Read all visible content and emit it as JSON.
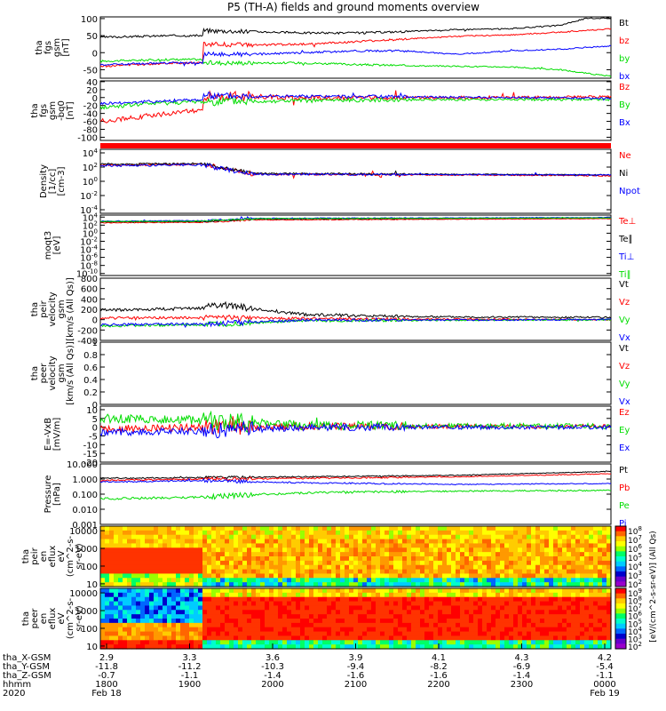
{
  "title": "P5 (TH-A) fields and ground moments overview",
  "colors": {
    "black": "#000000",
    "red": "#ff0000",
    "green": "#00dd00",
    "blue": "#0000ff"
  },
  "chart_data": [
    {
      "type": "line",
      "ylabel": [
        "tha",
        "fgs",
        "gsm",
        "[nT]"
      ],
      "yticks": [
        100,
        50,
        0,
        -50
      ],
      "ylim": [
        -75,
        105
      ],
      "legend": [
        {
          "label": "Bt",
          "color": "black"
        },
        {
          "label": "bz",
          "color": "red"
        },
        {
          "label": "by",
          "color": "green"
        },
        {
          "label": "bx",
          "color": "blue"
        }
      ],
      "series": [
        {
          "name": "Bt",
          "color": "black",
          "x": [
            0,
            0.14,
            0.2,
            0.2,
            0.3,
            0.4,
            0.5,
            0.6,
            0.7,
            0.8,
            0.9,
            0.95,
            1
          ],
          "values": [
            45,
            50,
            50,
            65,
            62,
            58,
            58,
            62,
            68,
            70,
            80,
            100,
            102
          ],
          "noise": 3
        },
        {
          "name": "bz",
          "color": "red",
          "x": [
            0,
            0.14,
            0.2,
            0.2,
            0.3,
            0.4,
            0.5,
            0.6,
            0.7,
            0.8,
            0.9,
            1
          ],
          "values": [
            -40,
            -30,
            -30,
            25,
            22,
            25,
            32,
            40,
            48,
            52,
            60,
            70
          ],
          "noise": 3
        },
        {
          "name": "by",
          "color": "green",
          "x": [
            0,
            0.14,
            0.2,
            0.2,
            0.3,
            0.4,
            0.5,
            0.6,
            0.7,
            0.8,
            0.9,
            1
          ],
          "values": [
            -25,
            -20,
            -20,
            -30,
            -30,
            -30,
            -35,
            -38,
            -40,
            -42,
            -50,
            -70
          ],
          "noise": 3
        },
        {
          "name": "bx",
          "color": "blue",
          "x": [
            0,
            0.14,
            0.2,
            0.2,
            0.3,
            0.4,
            0.5,
            0.6,
            0.7,
            0.8,
            0.9,
            1
          ],
          "values": [
            -35,
            -30,
            -30,
            -5,
            -5,
            0,
            5,
            5,
            -5,
            5,
            10,
            20
          ],
          "noise": 3
        }
      ]
    },
    {
      "type": "line",
      "ylabel": [
        "tha",
        "fgs",
        "gsm",
        "-bq0",
        "[nT]"
      ],
      "yticks": [
        40,
        20,
        0,
        -20,
        -40,
        -60,
        -80,
        -100
      ],
      "ylim": [
        -108,
        42
      ],
      "legend": [
        {
          "label": "Bz",
          "color": "red"
        },
        {
          "label": "By",
          "color": "green"
        },
        {
          "label": "Bx",
          "color": "blue"
        }
      ],
      "series": [
        {
          "name": "Bz",
          "color": "red",
          "x": [
            0,
            0.1,
            0.2,
            0.2,
            0.4,
            0.6,
            0.8,
            1
          ],
          "values": [
            -60,
            -45,
            -30,
            5,
            0,
            0,
            0,
            2
          ],
          "noise": 6
        },
        {
          "name": "By",
          "color": "green",
          "x": [
            0,
            0.1,
            0.2,
            0.2,
            0.4,
            0.6,
            0.8,
            1
          ],
          "values": [
            -25,
            -15,
            -10,
            -10,
            -8,
            -5,
            -5,
            -5
          ],
          "noise": 5
        },
        {
          "name": "Bx",
          "color": "blue",
          "x": [
            0,
            0.1,
            0.2,
            0.2,
            0.4,
            0.6,
            0.8,
            1
          ],
          "values": [
            -15,
            -10,
            -5,
            5,
            3,
            2,
            0,
            -2
          ],
          "noise": 4
        }
      ]
    },
    {
      "type": "line",
      "ylabel": [
        "Density",
        "[1/cc]",
        "[cm-3]"
      ],
      "yticks": [
        "10^4",
        "10^2",
        "10^0",
        "10^-2",
        "10^-4"
      ],
      "ylim": [
        -4.5,
        4.5
      ],
      "log": true,
      "legend": [
        {
          "label": "Ne",
          "color": "red"
        },
        {
          "label": "Ni",
          "color": "black"
        },
        {
          "label": "Npot",
          "color": "blue"
        }
      ],
      "series": [
        {
          "name": "Ne",
          "color": "red",
          "x": [
            0,
            0.2,
            0.3,
            1
          ],
          "values": [
            2.3,
            2.4,
            1,
            0.8
          ],
          "noise": 0.15
        },
        {
          "name": "Ni",
          "color": "black",
          "x": [
            0,
            0.2,
            0.3,
            1
          ],
          "values": [
            2.4,
            2.5,
            1.1,
            0.9
          ],
          "noise": 0.12
        },
        {
          "name": "Npot",
          "color": "blue",
          "x": [
            0,
            0.2,
            0.3,
            1
          ],
          "values": [
            2.2,
            2.3,
            1.0,
            0.9
          ],
          "noise": 0.15
        }
      ]
    },
    {
      "type": "line",
      "ylabel": [
        "moqt3",
        "[eV]"
      ],
      "yticks": [
        "10^4",
        "10^2",
        "10^0",
        "10^-2",
        "10^-4",
        "10^-6",
        "10^-8",
        "10^-10"
      ],
      "ylim": [
        -10.5,
        4.5
      ],
      "log": true,
      "legend": [
        {
          "label": "Te⊥",
          "color": "red"
        },
        {
          "label": "Te∥",
          "color": "black"
        },
        {
          "label": "Ti⊥",
          "color": "blue"
        },
        {
          "label": "Ti∥",
          "color": "green"
        }
      ],
      "series": [
        {
          "name": "Te⊥",
          "color": "red",
          "x": [
            0,
            0.2,
            0.3,
            1
          ],
          "values": [
            2.6,
            2.7,
            3.3,
            3.6
          ],
          "noise": 0.1
        },
        {
          "name": "Te∥",
          "color": "black",
          "x": [
            0,
            0.2,
            0.3,
            1
          ],
          "values": [
            2.8,
            2.9,
            3.5,
            3.8
          ],
          "noise": 0.1
        },
        {
          "name": "Ti⊥",
          "color": "blue",
          "x": [
            0,
            0.2,
            0.3,
            1
          ],
          "values": [
            3.0,
            3.1,
            3.7,
            3.9
          ],
          "noise": 0.1
        },
        {
          "name": "Ti∥",
          "color": "green",
          "x": [
            0,
            0.2,
            0.3,
            1
          ],
          "values": [
            2.9,
            3.0,
            3.6,
            3.8
          ],
          "noise": 0.1
        }
      ]
    },
    {
      "type": "line",
      "ylabel": [
        "tha",
        "peir",
        "velocity",
        "gsm",
        "[km/s (All Qs)]"
      ],
      "yticks": [
        800,
        600,
        400,
        200,
        0,
        -200,
        -400
      ],
      "ylim": [
        -400,
        800
      ],
      "legend": [
        {
          "label": "Vt",
          "color": "black"
        },
        {
          "label": "Vz",
          "color": "red"
        },
        {
          "label": "Vy",
          "color": "green"
        },
        {
          "label": "Vx",
          "color": "blue"
        }
      ],
      "series": [
        {
          "name": "Vt",
          "color": "black",
          "x": [
            0,
            0.2,
            0.22,
            0.4,
            0.6,
            1
          ],
          "values": [
            180,
            220,
            300,
            100,
            60,
            40
          ],
          "noise": 30
        },
        {
          "name": "Vz",
          "color": "red",
          "x": [
            0,
            0.2,
            0.4,
            1
          ],
          "values": [
            30,
            40,
            20,
            0
          ],
          "noise": 25
        },
        {
          "name": "Vy",
          "color": "green",
          "x": [
            0,
            0.2,
            0.4,
            1
          ],
          "values": [
            -120,
            -100,
            -20,
            0
          ],
          "noise": 25
        },
        {
          "name": "Vx",
          "color": "blue",
          "x": [
            0,
            0.2,
            0.4,
            1
          ],
          "values": [
            -100,
            -80,
            -10,
            0
          ],
          "noise": 25
        }
      ]
    },
    {
      "type": "line",
      "ylabel": [
        "tha",
        "peer",
        "velocity",
        "gsm",
        "[km/s (All Qs)]"
      ],
      "yticks": [
        1.0,
        0.8,
        0.6,
        0.4,
        0.2,
        0.0
      ],
      "ylim": [
        0,
        1
      ],
      "legend": [
        {
          "label": "Vt",
          "color": "black"
        },
        {
          "label": "Vz",
          "color": "red"
        },
        {
          "label": "Vy",
          "color": "green"
        },
        {
          "label": "Vx",
          "color": "blue"
        }
      ],
      "series": []
    },
    {
      "type": "line",
      "ylabel": [
        "E=-VxB",
        "[mV/m]"
      ],
      "yticks": [
        10,
        5,
        0,
        -5,
        -10,
        -15,
        -20
      ],
      "ylim": [
        -20,
        12
      ],
      "legend": [
        {
          "label": "Ez",
          "color": "red"
        },
        {
          "label": "Ey",
          "color": "green"
        },
        {
          "label": "Ex",
          "color": "blue"
        }
      ],
      "series": [
        {
          "name": "Ez",
          "color": "red",
          "x": [
            0,
            0.2,
            0.4,
            1
          ],
          "values": [
            -1,
            0,
            0.5,
            0.5
          ],
          "noise": 2
        },
        {
          "name": "Ey",
          "color": "green",
          "x": [
            0,
            0.2,
            0.4,
            1
          ],
          "values": [
            5,
            4,
            1,
            0.5
          ],
          "noise": 2.5
        },
        {
          "name": "Ex",
          "color": "blue",
          "x": [
            0,
            0.2,
            0.4,
            1
          ],
          "values": [
            -3,
            -2,
            0,
            0
          ],
          "noise": 2
        }
      ]
    },
    {
      "type": "line",
      "ylabel": [
        "Pressure",
        "[nPa]"
      ],
      "yticks": [
        "10.000",
        "1.000",
        "0.100",
        "0.010",
        "0.001"
      ],
      "ylim": [
        -3,
        1
      ],
      "log": true,
      "legend": [
        {
          "label": "Pt",
          "color": "black"
        },
        {
          "label": "Pb",
          "color": "red"
        },
        {
          "label": "Pe",
          "color": "green"
        },
        {
          "label": "Pi",
          "color": "blue"
        }
      ],
      "series": [
        {
          "name": "Pt",
          "color": "black",
          "x": [
            0,
            0.2,
            0.4,
            0.7,
            1
          ],
          "values": [
            0.05,
            0.1,
            0.15,
            0.25,
            0.5
          ],
          "noise": 0.04
        },
        {
          "name": "Pb",
          "color": "red",
          "x": [
            0,
            0.2,
            0.4,
            0.7,
            1
          ],
          "values": [
            -0.1,
            0.0,
            0.05,
            0.15,
            0.35
          ],
          "noise": 0.05
        },
        {
          "name": "Pe",
          "color": "green",
          "x": [
            0,
            0.2,
            0.4,
            0.7,
            1
          ],
          "values": [
            -1.3,
            -1.2,
            -0.9,
            -0.8,
            -0.75
          ],
          "noise": 0.08
        },
        {
          "name": "Pi",
          "color": "blue",
          "x": [
            0,
            0.2,
            0.4,
            0.7,
            1
          ],
          "values": [
            -0.2,
            -0.1,
            -0.25,
            -0.35,
            -0.3
          ],
          "noise": 0.05
        }
      ]
    },
    {
      "type": "heatmap",
      "ylabel": [
        "tha",
        "peir",
        "en",
        "eflux",
        "eV",
        "(cm^2-s-",
        "sr-eV)"
      ],
      "yticks": [
        10000,
        1000,
        100,
        10
      ],
      "colorbar_label": "[eV/(cm^2-s-sr-eV)] (All Qs)",
      "colorbar_ticks": [
        "10^8",
        "10^7",
        "10^6",
        "10^5",
        "10^4",
        "10^3",
        "10^2"
      ]
    },
    {
      "type": "heatmap",
      "ylabel": [
        "tha",
        "peer",
        "en",
        "eflux",
        "eV",
        "(cm^2-s-",
        "sr-eV)"
      ],
      "yticks": [
        10000,
        1000,
        100,
        10
      ],
      "colorbar_label": "[eV/(cm^2-s-sr-eV)] (All Qs)",
      "colorbar_ticks": [
        "10^9",
        "10^8",
        "10^7",
        "10^6",
        "10^5",
        "10^4",
        "10^3",
        "10^2"
      ]
    }
  ],
  "xaxis": {
    "row_labels": [
      "tha_X-GSM",
      "tha_Y-GSM",
      "tha_Z-GSM",
      "hhmm",
      "2020"
    ],
    "ticks": [
      {
        "values": [
          "2.9",
          "-11.8",
          "-0.7",
          "1800",
          "Feb 18"
        ]
      },
      {
        "values": [
          "3.3",
          "-11.2",
          "-1.1",
          "1900",
          ""
        ]
      },
      {
        "values": [
          "3.6",
          "-10.3",
          "-1.4",
          "2000",
          ""
        ]
      },
      {
        "values": [
          "3.9",
          "-9.4",
          "-1.6",
          "2100",
          ""
        ]
      },
      {
        "values": [
          "4.1",
          "-8.2",
          "-1.6",
          "2200",
          ""
        ]
      },
      {
        "values": [
          "4.3",
          "-6.9",
          "-1.4",
          "2300",
          ""
        ]
      },
      {
        "values": [
          "4.2",
          "-5.4",
          "-1.1",
          "0000",
          "Feb 19"
        ]
      }
    ]
  }
}
